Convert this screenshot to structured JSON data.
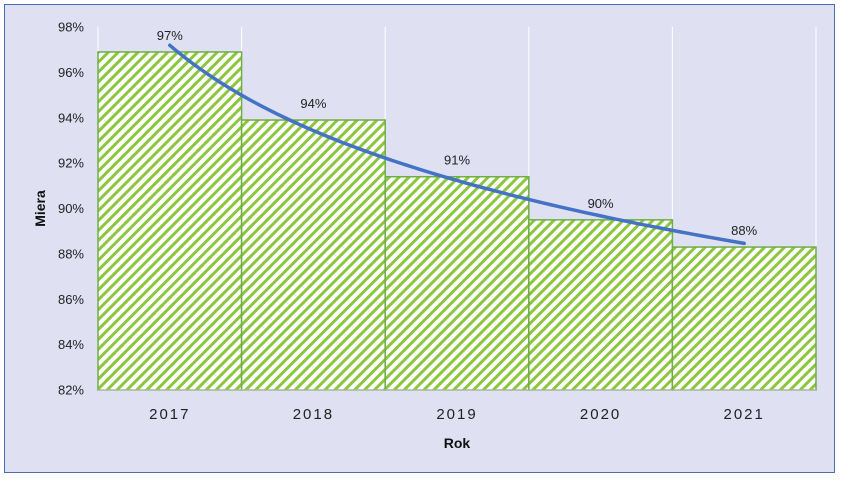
{
  "chart_data": {
    "type": "bar",
    "title": "",
    "xlabel": "Rok",
    "ylabel": "Miera",
    "categories": [
      "2017",
      "2018",
      "2019",
      "2020",
      "2021"
    ],
    "values": [
      96.9,
      93.9,
      91.4,
      89.5,
      88.3
    ],
    "data_labels": [
      "97%",
      "94%",
      "91%",
      "90%",
      "88%"
    ],
    "trendline": {
      "type": "line",
      "shape": "logarithmic",
      "color": "#4472c4"
    },
    "ylim": [
      82,
      98
    ],
    "yticks": [
      82,
      84,
      86,
      88,
      90,
      92,
      94,
      96,
      98
    ],
    "ytick_labels": [
      "82%",
      "84%",
      "86%",
      "88%",
      "90%",
      "92%",
      "94%",
      "96%",
      "98%"
    ],
    "grid": "vertical",
    "bar_fill": "diagonal-hatch",
    "bar_color": "#70ad47",
    "background": "#dfe0f2",
    "border_color": "#4a6cb3"
  }
}
